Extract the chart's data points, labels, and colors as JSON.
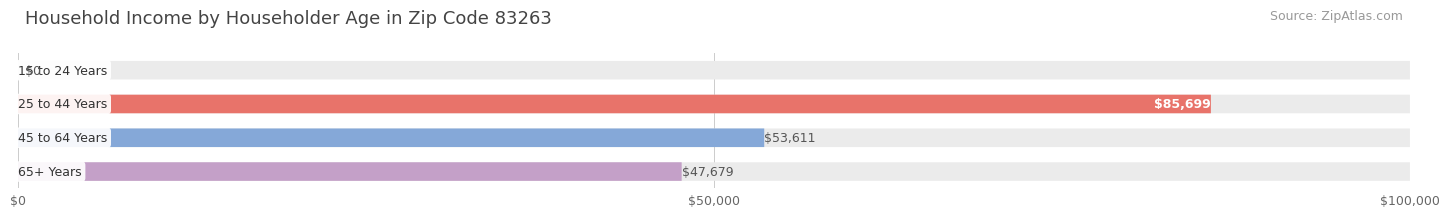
{
  "title": "Household Income by Householder Age in Zip Code 83263",
  "source": "Source: ZipAtlas.com",
  "categories": [
    "15 to 24 Years",
    "25 to 44 Years",
    "45 to 64 Years",
    "65+ Years"
  ],
  "values": [
    0,
    85699,
    53611,
    47679
  ],
  "bar_colors": [
    "#e8c98a",
    "#e8736a",
    "#85a8d8",
    "#c4a0c8"
  ],
  "bar_bg_color": "#ebebeb",
  "label_text_colors": [
    "#666666",
    "#ffffff",
    "#666666",
    "#666666"
  ],
  "xlim": [
    0,
    100000
  ],
  "xticks": [
    0,
    50000,
    100000
  ],
  "xticklabels": [
    "$0",
    "$50,000",
    "$100,000"
  ],
  "title_fontsize": 13,
  "source_fontsize": 9,
  "tick_fontsize": 9,
  "bar_label_fontsize": 9,
  "category_fontsize": 9,
  "background_color": "#ffffff",
  "bar_height": 0.55
}
